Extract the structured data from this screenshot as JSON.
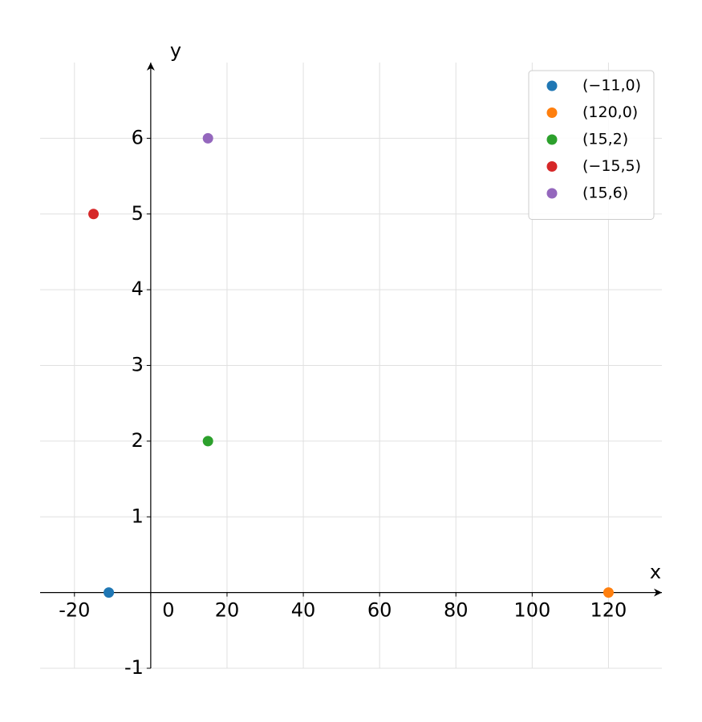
{
  "chart_data": {
    "type": "scatter",
    "xlabel": "x",
    "ylabel": "y",
    "xlim": [
      -29,
      134
    ],
    "ylim": [
      -1,
      7
    ],
    "xticks": [
      -20,
      0,
      20,
      40,
      60,
      80,
      100,
      120
    ],
    "yticks": [
      -1,
      1,
      2,
      3,
      4,
      5,
      6
    ],
    "grid": true,
    "legend": "upper right",
    "series": [
      {
        "name": "(−11,0)",
        "color": "#1f77b4",
        "x": [
          -11
        ],
        "values": [
          0
        ]
      },
      {
        "name": "(120,0)",
        "color": "#ff7f0e",
        "x": [
          120
        ],
        "values": [
          0
        ]
      },
      {
        "name": "(15,2)",
        "color": "#2ca02c",
        "x": [
          15
        ],
        "values": [
          2
        ]
      },
      {
        "name": "(−15,5)",
        "color": "#d62728",
        "x": [
          -15
        ],
        "values": [
          5
        ]
      },
      {
        "name": "(15,6)",
        "color": "#9467bd",
        "x": [
          15
        ],
        "values": [
          6
        ]
      }
    ]
  }
}
